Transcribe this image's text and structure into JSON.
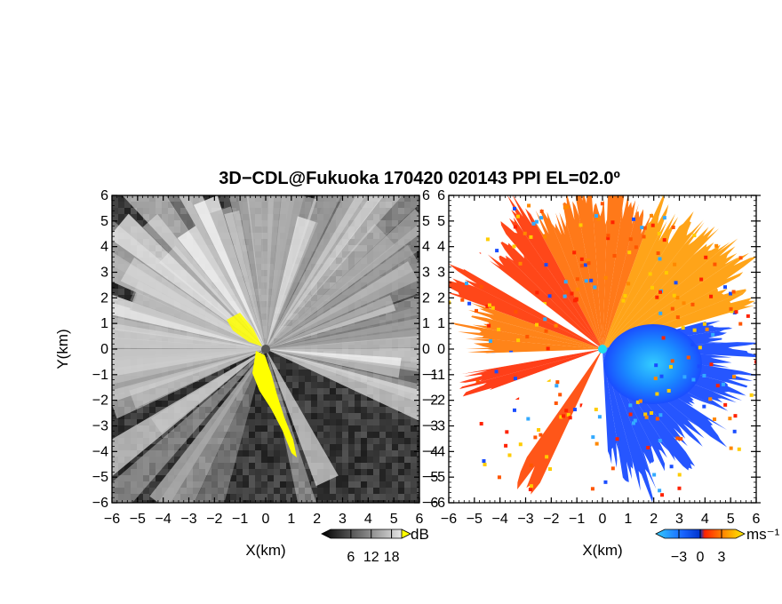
{
  "title": "3D−CDL@Fukuoka 170420 020143 PPI EL=02.0º",
  "chart_data": [
    {
      "type": "heatmap",
      "panel": "left",
      "quantity": "SNR",
      "xlabel": "X(km)",
      "ylabel": "Y(km)",
      "xlim": [
        -6,
        6
      ],
      "ylim": [
        -6,
        6
      ],
      "xticks": [
        "−6",
        "−5",
        "−4",
        "−3",
        "−2",
        "−1",
        "0",
        "1",
        "2",
        "3",
        "4",
        "5",
        "6"
      ],
      "yticks": [
        "−6",
        "−5",
        "−4",
        "−3",
        "−2",
        "−1",
        "0",
        "1",
        "2",
        "3",
        "4",
        "5",
        "6"
      ],
      "colorbar": {
        "unit": "dB",
        "ticks": [
          "6",
          "12",
          "18"
        ],
        "range": [
          0,
          21
        ],
        "colormap": "greyscale",
        "overflow_color": "#ffff00"
      },
      "background_color": "#3a3a3a",
      "origin_marker_color": "#555555"
    },
    {
      "type": "heatmap",
      "panel": "right",
      "quantity": "Doppler velocity",
      "xlabel": "X(km)",
      "xlim": [
        -6,
        6
      ],
      "ylim": [
        -6,
        6
      ],
      "xticks": [
        "−6",
        "−5",
        "−4",
        "−3",
        "−2",
        "−1",
        "0",
        "1",
        "2",
        "3",
        "4",
        "5",
        "6"
      ],
      "yticks": [
        "−6",
        "−5",
        "−4",
        "−3",
        "−2",
        "−1",
        "0",
        "1",
        "2",
        "3",
        "4",
        "5",
        "6"
      ],
      "colorbar": {
        "unit": "ms⁻¹",
        "ticks": [
          "−3",
          "0",
          "3"
        ],
        "range": [
          -5,
          5
        ],
        "colormap": "cyan-blue-red-orange-yellow"
      },
      "negative_colors": [
        "#33ccff",
        "#1a66ff"
      ],
      "positive_colors": [
        "#ff3300",
        "#ff9900",
        "#ffdd00"
      ],
      "origin_marker_color": "#22ddee"
    }
  ]
}
